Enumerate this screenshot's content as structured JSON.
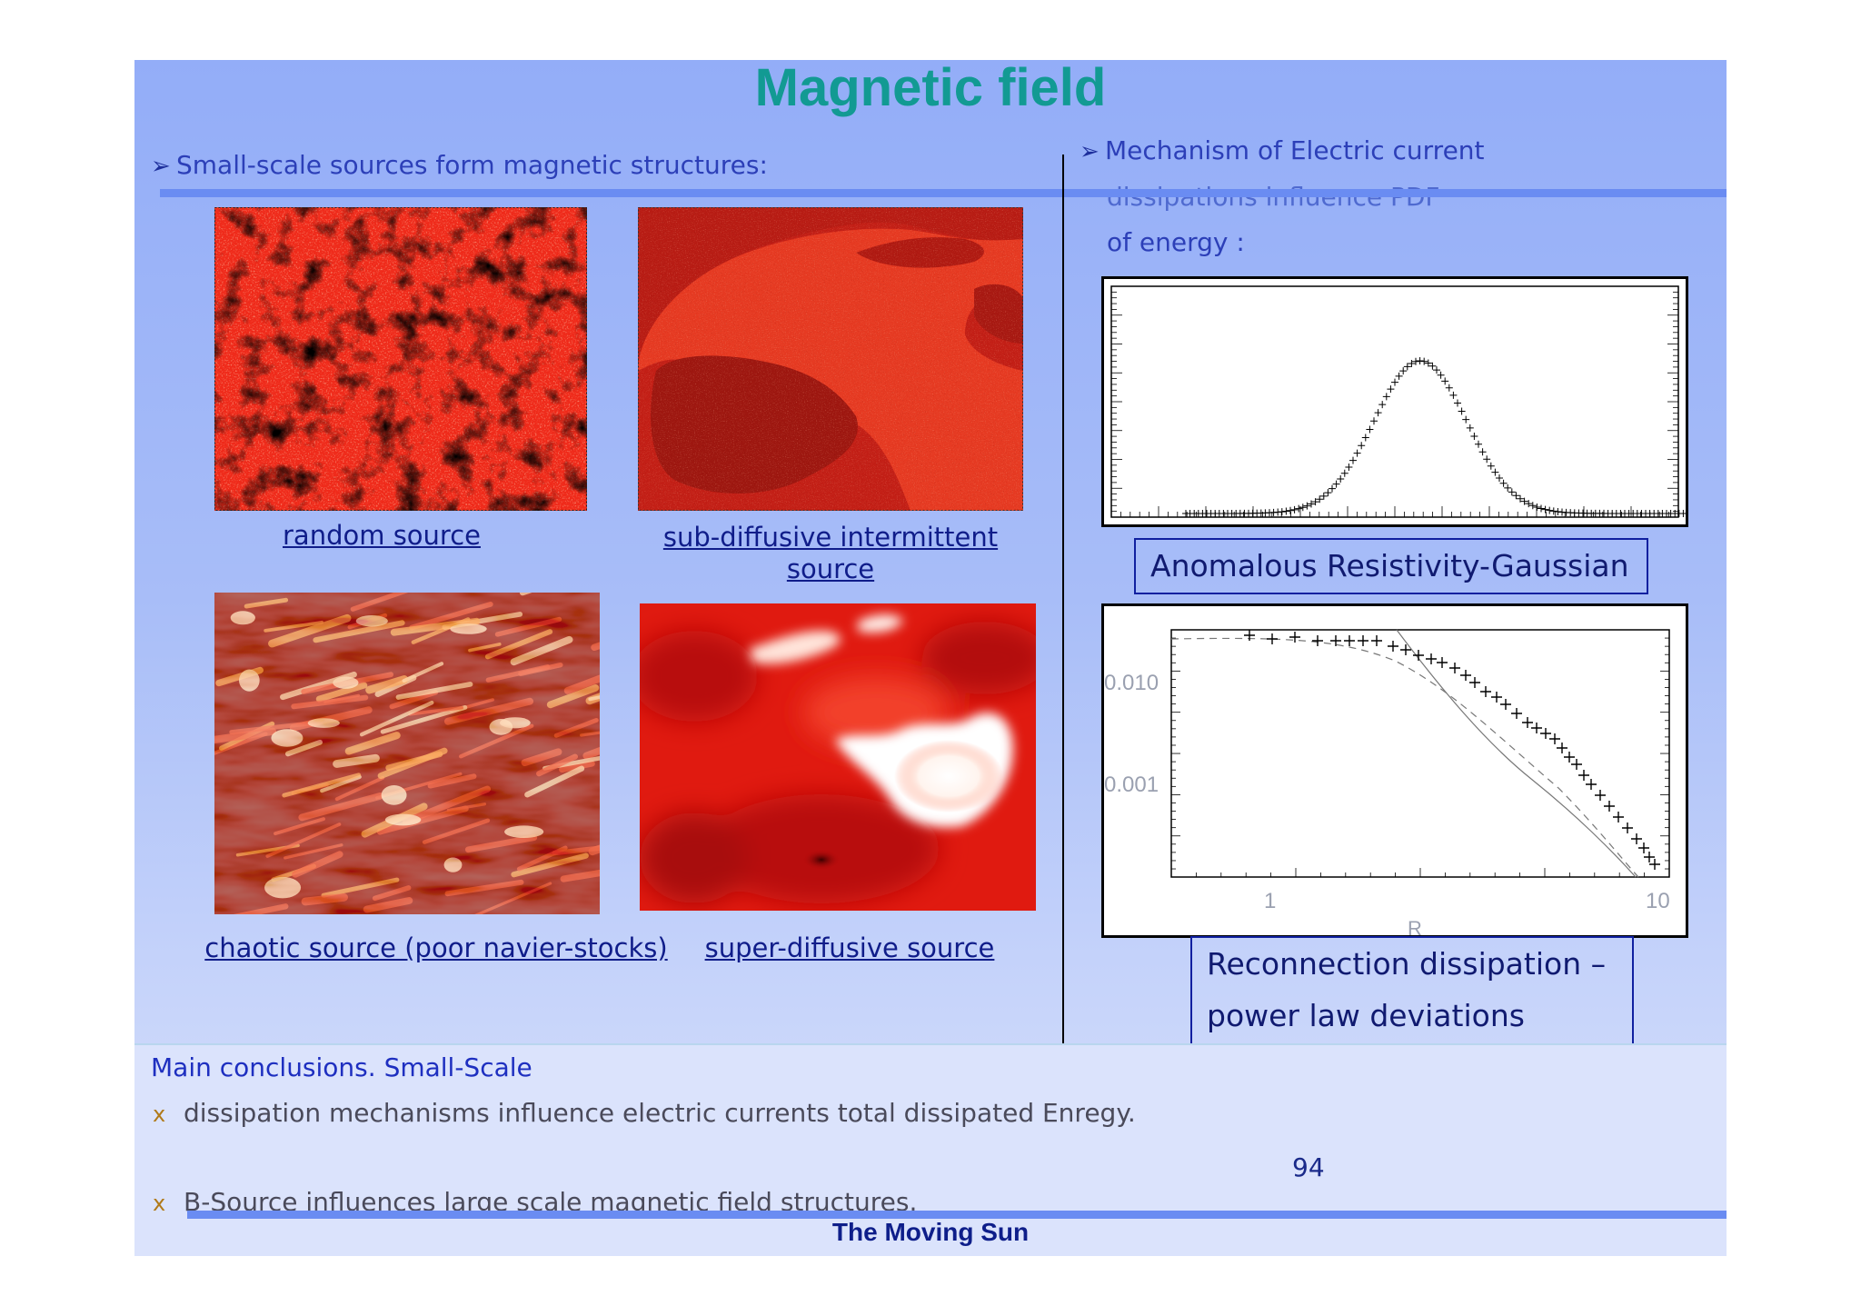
{
  "slide": {
    "title": "Magnetic field",
    "left_heading": "Small-scale sources form magnetic structures:",
    "right_heading_lines": [
      "Mechanism of Electric current",
      "dissipations influence PDF",
      "of energy :"
    ],
    "arrow_glyph": "➢",
    "images": [
      {
        "caption": "random source",
        "palette": "random"
      },
      {
        "caption_lines": [
          "sub-diffusive intermittent",
          "source"
        ],
        "palette": "subdiffusive"
      },
      {
        "caption": "chaotic source (poor navier-stocks)",
        "palette": "chaotic"
      },
      {
        "caption": "super-diffusive source",
        "palette": "superdiffusive"
      }
    ],
    "gaussian_label": "Anomalous Resistivity-Gaussian",
    "powerlaw_label_lines": [
      "Reconnection dissipation –",
      "power law deviations"
    ],
    "powerlaw_axis": {
      "ytick_labels": [
        "0.010",
        "0.001"
      ],
      "xtick_labels": [
        "1",
        "10"
      ],
      "xlabel_partial": "R"
    },
    "conclusions": {
      "heading": "Main conclusions. Small-Scale",
      "bullet_glyph": "x",
      "items": [
        "dissipation mechanisms influence electric currents total dissipated Enregy.",
        "B-Source influences large scale magnetic field structures."
      ]
    },
    "page_number": "94",
    "footer": "The Moving Sun",
    "colors": {
      "title": "#129a93",
      "accent_bar": "#6a8cf2",
      "text_blue": "#2c3fb8"
    }
  }
}
